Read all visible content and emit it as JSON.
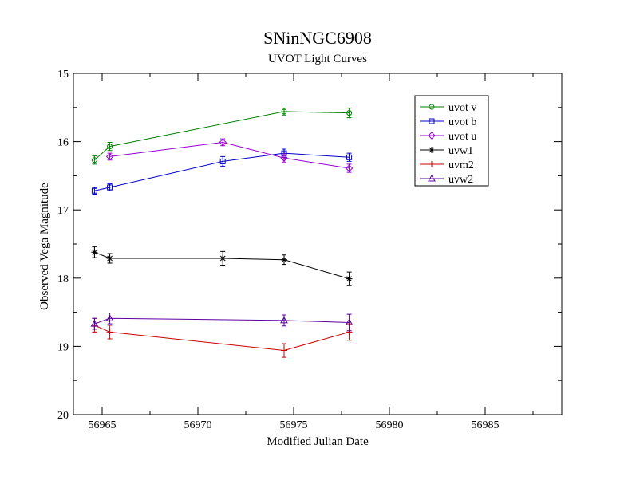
{
  "chart_data": {
    "type": "line",
    "title": "SNinNGC6908",
    "subtitle": "UVOT Light Curves",
    "xlabel": "Modified Julian Date",
    "ylabel": "Observed Vega Magnitude",
    "xlim": [
      56963.5,
      56989
    ],
    "ylim": [
      20,
      15
    ],
    "y_inverted": true,
    "grid": false,
    "legend_position": "top-right",
    "x_ticks": [
      {
        "value": 56965,
        "label": "56965"
      },
      {
        "value": 56970,
        "label": "56970"
      },
      {
        "value": 56975,
        "label": "56975"
      },
      {
        "value": 56980,
        "label": "56980"
      },
      {
        "value": 56985,
        "label": "56985"
      }
    ],
    "y_ticks": [
      {
        "value": 15,
        "label": "15"
      },
      {
        "value": 16,
        "label": "16"
      },
      {
        "value": 17,
        "label": "17"
      },
      {
        "value": 18,
        "label": "18"
      },
      {
        "value": 19,
        "label": "19"
      },
      {
        "value": 20,
        "label": "20"
      }
    ],
    "series": [
      {
        "name": "uvot v",
        "color": "#008000",
        "marker": "circle",
        "points": [
          {
            "x": 56964.6,
            "y": 16.27,
            "err": 0.06
          },
          {
            "x": 56965.4,
            "y": 16.07,
            "err": 0.06
          },
          {
            "x": 56974.5,
            "y": 15.56,
            "err": 0.05
          },
          {
            "x": 56977.9,
            "y": 15.58,
            "err": 0.07
          }
        ]
      },
      {
        "name": "uvot b",
        "color": "#0000cc",
        "marker": "square",
        "points": [
          {
            "x": 56964.6,
            "y": 16.72,
            "err": 0.05
          },
          {
            "x": 56965.4,
            "y": 16.67,
            "err": 0.05
          },
          {
            "x": 56971.3,
            "y": 16.29,
            "err": 0.07
          },
          {
            "x": 56974.5,
            "y": 16.17,
            "err": 0.06
          },
          {
            "x": 56977.9,
            "y": 16.23,
            "err": 0.06
          }
        ]
      },
      {
        "name": "uvot u",
        "color": "#9400d3",
        "marker": "diamond",
        "points": [
          {
            "x": 56965.4,
            "y": 16.22,
            "err": 0.05
          },
          {
            "x": 56971.3,
            "y": 16.01,
            "err": 0.05
          },
          {
            "x": 56974.5,
            "y": 16.24,
            "err": 0.06
          },
          {
            "x": 56977.9,
            "y": 16.39,
            "err": 0.06
          }
        ]
      },
      {
        "name": "uvw1",
        "color": "#000000",
        "marker": "star",
        "points": [
          {
            "x": 56964.6,
            "y": 17.62,
            "err": 0.08
          },
          {
            "x": 56965.4,
            "y": 17.71,
            "err": 0.07
          },
          {
            "x": 56971.3,
            "y": 17.71,
            "err": 0.1
          },
          {
            "x": 56974.5,
            "y": 17.73,
            "err": 0.07
          },
          {
            "x": 56977.9,
            "y": 18.01,
            "err": 0.1
          }
        ]
      },
      {
        "name": "uvm2",
        "color": "#cc0000",
        "marker": "plus",
        "points": [
          {
            "x": 56964.6,
            "y": 18.69,
            "err": 0.1
          },
          {
            "x": 56965.4,
            "y": 18.79,
            "err": 0.1
          },
          {
            "x": 56974.5,
            "y": 19.06,
            "err": 0.1
          },
          {
            "x": 56977.9,
            "y": 18.79,
            "err": 0.12
          }
        ]
      },
      {
        "name": "uvw2",
        "color": "#5a00a0",
        "marker": "triangle",
        "points": [
          {
            "x": 56964.6,
            "y": 18.67,
            "err": 0.08
          },
          {
            "x": 56965.4,
            "y": 18.59,
            "err": 0.08
          },
          {
            "x": 56974.5,
            "y": 18.62,
            "err": 0.08
          },
          {
            "x": 56977.9,
            "y": 18.65,
            "err": 0.12
          }
        ]
      }
    ]
  }
}
